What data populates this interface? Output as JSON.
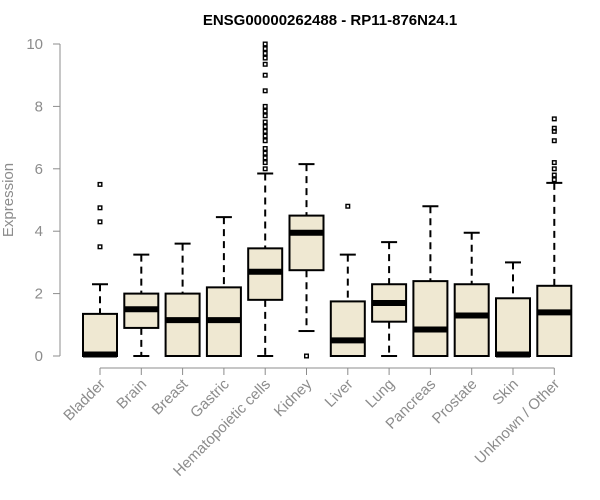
{
  "chart_data": {
    "type": "box",
    "title": "ENSG00000262488 - RP11-876N24.1",
    "xlabel": "",
    "ylabel": "Expression",
    "ylim": [
      0,
      10
    ],
    "yticks": [
      0,
      2,
      4,
      6,
      8,
      10
    ],
    "ytick_labels": [
      "0",
      "2",
      "4",
      "6",
      "8",
      "10"
    ],
    "box_fill": "#efe8d2",
    "axis_color": "#8c8c8c",
    "categories": [
      "Bladder",
      "Brain",
      "Breast",
      "Gastric",
      "Hematopoietic cells",
      "Kidney",
      "Liver",
      "Lung",
      "Pancreas",
      "Prostate",
      "Skin",
      "Unknown / Other"
    ],
    "series": [
      {
        "name": "Bladder",
        "whisker_low": 0,
        "q1": 0,
        "median": 0.05,
        "q3": 1.35,
        "whisker_high": 2.3,
        "outliers": [
          3.5,
          4.3,
          4.75,
          5.5
        ]
      },
      {
        "name": "Brain",
        "whisker_low": 0,
        "q1": 0.9,
        "median": 1.5,
        "q3": 2.0,
        "whisker_high": 3.25,
        "outliers": []
      },
      {
        "name": "Breast",
        "whisker_low": 0,
        "q1": 0,
        "median": 1.15,
        "q3": 2.0,
        "whisker_high": 3.6,
        "outliers": []
      },
      {
        "name": "Gastric",
        "whisker_low": 0,
        "q1": 0,
        "median": 1.15,
        "q3": 2.2,
        "whisker_high": 4.45,
        "outliers": []
      },
      {
        "name": "Hematopoietic cells",
        "whisker_low": 0,
        "q1": 1.8,
        "median": 2.7,
        "q3": 3.45,
        "whisker_high": 5.85,
        "outliers": [
          6.0,
          6.2,
          6.35,
          6.5,
          6.65,
          6.9,
          7.05,
          7.2,
          7.35,
          7.5,
          7.7,
          7.85,
          8.0,
          8.5,
          9.0,
          9.35,
          9.55,
          9.7,
          9.85,
          10.0
        ]
      },
      {
        "name": "Kidney",
        "whisker_low": 0.8,
        "q1": 2.75,
        "median": 3.95,
        "q3": 4.5,
        "whisker_high": 6.15,
        "outliers": [
          0.0
        ]
      },
      {
        "name": "Liver",
        "whisker_low": 0,
        "q1": 0,
        "median": 0.5,
        "q3": 1.75,
        "whisker_high": 3.25,
        "outliers": [
          4.8
        ]
      },
      {
        "name": "Lung",
        "whisker_low": 0,
        "q1": 1.1,
        "median": 1.7,
        "q3": 2.3,
        "whisker_high": 3.65,
        "outliers": []
      },
      {
        "name": "Pancreas",
        "whisker_low": 0,
        "q1": 0,
        "median": 0.85,
        "q3": 2.4,
        "whisker_high": 4.8,
        "outliers": []
      },
      {
        "name": "Prostate",
        "whisker_low": 0,
        "q1": 0,
        "median": 1.3,
        "q3": 2.3,
        "whisker_high": 3.95,
        "outliers": []
      },
      {
        "name": "Skin",
        "whisker_low": 0,
        "q1": 0,
        "median": 0.05,
        "q3": 1.85,
        "whisker_high": 3.0,
        "outliers": []
      },
      {
        "name": "Unknown / Other",
        "whisker_low": 0,
        "q1": 0,
        "median": 1.4,
        "q3": 2.25,
        "whisker_high": 5.55,
        "outliers": [
          5.65,
          5.8,
          6.0,
          6.2,
          6.9,
          7.2,
          7.3,
          7.6
        ]
      }
    ]
  }
}
